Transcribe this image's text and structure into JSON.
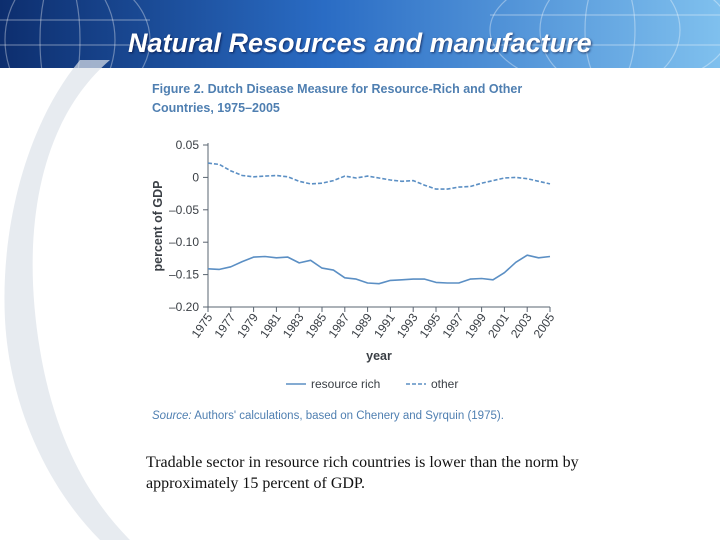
{
  "slide": {
    "title": "Natural Resources and manufacture",
    "caption": "Tradable sector in resource rich countries is lower than the norm by approximately 15 percent of GDP."
  },
  "colors": {
    "header_dark": "#0d2e6e",
    "header_mid": "#2a6cc4",
    "header_light": "#7fc0ee",
    "series": "#5b8fc4",
    "text_blue": "#4f7fb1",
    "axis": "#5a6470"
  },
  "figure": {
    "title": "Figure 2. Dutch Disease Measure for Resource-Rich and Other Countries, 1975–2005",
    "source_label": "Source:",
    "source_text": " Authors' calculations, based on Chenery and Syrquin (1975)."
  },
  "chart_data": {
    "type": "line",
    "title": "Dutch Disease Measure for Resource-Rich and Other Countries, 1975–2005",
    "xlabel": "year",
    "ylabel": "percent of GDP",
    "ylim": [
      -0.2,
      0.05
    ],
    "xlim": [
      1975,
      2005
    ],
    "yticks": [
      0.05,
      0,
      -0.05,
      -0.1,
      -0.15,
      -0.2
    ],
    "ytick_labels": [
      "0.05",
      "0",
      "–0.05",
      "–0.10",
      "–0.15",
      "–0.20"
    ],
    "xticks": [
      "1975",
      "1977",
      "1979",
      "1981",
      "1983",
      "1985",
      "1987",
      "1989",
      "1991",
      "1993",
      "1995",
      "1997",
      "1999",
      "2001",
      "2003",
      "2005"
    ],
    "legend_position": "bottom",
    "series": [
      {
        "name": "resource rich",
        "style": "solid",
        "x": [
          1975,
          1976,
          1977,
          1978,
          1979,
          1980,
          1981,
          1982,
          1983,
          1984,
          1985,
          1986,
          1987,
          1988,
          1989,
          1990,
          1991,
          1992,
          1993,
          1994,
          1995,
          1996,
          1997,
          1998,
          1999,
          2000,
          2001,
          2002,
          2003,
          2004,
          2005
        ],
        "values": [
          -0.141,
          -0.142,
          -0.138,
          -0.13,
          -0.123,
          -0.122,
          -0.124,
          -0.123,
          -0.132,
          -0.128,
          -0.14,
          -0.143,
          -0.155,
          -0.157,
          -0.163,
          -0.164,
          -0.159,
          -0.158,
          -0.157,
          -0.157,
          -0.162,
          -0.163,
          -0.163,
          -0.157,
          -0.156,
          -0.158,
          -0.147,
          -0.131,
          -0.12,
          -0.124,
          -0.122
        ]
      },
      {
        "name": "other",
        "style": "dashed",
        "x": [
          1975,
          1976,
          1977,
          1978,
          1979,
          1980,
          1981,
          1982,
          1983,
          1984,
          1985,
          1986,
          1987,
          1988,
          1989,
          1990,
          1991,
          1992,
          1993,
          1994,
          1995,
          1996,
          1997,
          1998,
          1999,
          2000,
          2001,
          2002,
          2003,
          2004,
          2005
        ],
        "values": [
          0.022,
          0.02,
          0.01,
          0.003,
          0.001,
          0.002,
          0.003,
          0.001,
          -0.006,
          -0.01,
          -0.009,
          -0.005,
          0.002,
          -0.001,
          0.002,
          -0.001,
          -0.004,
          -0.006,
          -0.005,
          -0.012,
          -0.018,
          -0.018,
          -0.015,
          -0.014,
          -0.009,
          -0.005,
          -0.001,
          0.0,
          -0.002,
          -0.006,
          -0.01
        ]
      }
    ]
  }
}
